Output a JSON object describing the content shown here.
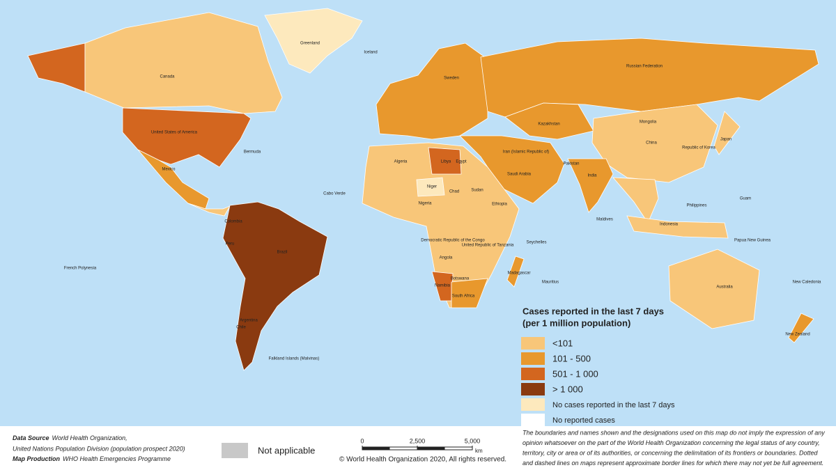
{
  "legend": {
    "title": [
      "Cases reported in the last 7 days",
      "(per 1 million population)"
    ],
    "items": [
      {
        "label": "<101",
        "color": "#f8c679"
      },
      {
        "label": "101 - 500",
        "color": "#e8982d"
      },
      {
        "label": "501 - 1 000",
        "color": "#d3661f"
      },
      {
        "label": "> 1 000",
        "color": "#8a3a10"
      },
      {
        "label": "No cases reported in the last 7 days",
        "color": "#fde9bd"
      },
      {
        "label": "No reported cases",
        "color": "#ffffff"
      }
    ]
  },
  "not_applicable": {
    "label": "Not applicable",
    "color": "#c8c8c8"
  },
  "ocean_color": "#bee0f7",
  "countries": [
    "Greenland",
    "Canada",
    "United States of America",
    "Mexico",
    "Brazil",
    "Argentina",
    "Colombia",
    "Peru",
    "Chile",
    "Russian Federation",
    "Kazakhstan",
    "China",
    "Mongolia",
    "India",
    "Pakistan",
    "Iran (Islamic Republic of)",
    "Saudi Arabia",
    "Egypt",
    "Libya",
    "Algeria",
    "Niger",
    "Chad",
    "Sudan",
    "Nigeria",
    "Ethiopia",
    "Democratic Republic of the Congo",
    "United Republic of Tanzania",
    "Angola",
    "Namibia",
    "Botswana",
    "South Africa",
    "Madagascar",
    "Australia",
    "New Zealand",
    "Japan",
    "Republic of Korea",
    "Indonesia",
    "Philippines",
    "Sweden",
    "Iceland",
    "French Polynesia",
    "Falkland Islands (Malvinas)",
    "Bermuda",
    "Cabo Verde",
    "Maldives",
    "Seychelles",
    "Mauritius",
    "New Caledonia",
    "Guam",
    "Papua New Guinea"
  ],
  "footer": {
    "source_label": "Data Source",
    "source_lines": [
      "World Health Organization,",
      "United Nations Population Division (population prospect 2020)"
    ],
    "production_label": "Map Production",
    "production_value": "WHO Health Emergencies Programme",
    "copyright": "© World Health Organization 2020, All rights reserved.",
    "disclaimer": [
      "The boundaries and names shown and the designations used on this map do not imply the expression of any",
      "opinion whatsoever on the part of the World Health Organization concerning the legal status of any country,",
      "territory, city or area or of its authorities, or concerning the delimitation of its frontiers or boundaries. Dotted",
      "and dashed lines on maps represent approximate border lines for which there may not yet be full agreement."
    ]
  },
  "scale_bar": {
    "ticks": [
      0,
      {
        "value": 2500,
        "label": "2,500"
      },
      {
        "value": 5000,
        "label": "5,000"
      }
    ],
    "unit": "km"
  }
}
